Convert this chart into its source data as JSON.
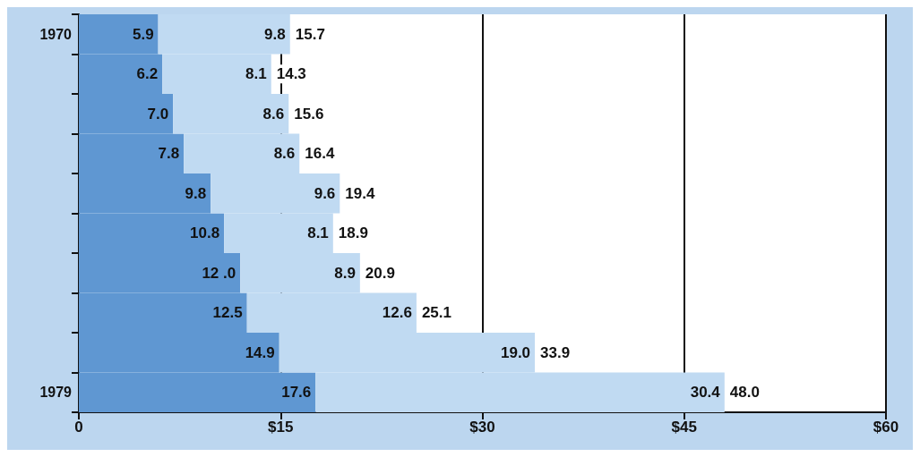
{
  "chart_data": {
    "type": "bar",
    "orientation": "horizontal",
    "stacked": true,
    "categories": [
      "1970",
      null,
      null,
      null,
      null,
      null,
      null,
      null,
      null,
      "1979"
    ],
    "series": [
      {
        "color": "#5f97d2",
        "values": [
          5.9,
          6.2,
          7.0,
          7.8,
          9.8,
          10.8,
          12.0,
          12.5,
          14.9,
          17.6
        ],
        "value_labels": [
          "5.9",
          "6.2",
          "7.0",
          "7.8",
          "9.8",
          "10.8",
          "12 .0",
          "12.5",
          "14.9",
          "17.6"
        ]
      },
      {
        "color": "#c0daf2",
        "values": [
          9.8,
          8.1,
          8.6,
          8.6,
          9.6,
          8.1,
          8.9,
          12.6,
          19.0,
          30.4
        ],
        "value_labels": [
          "9.8",
          "8.1",
          "8.6",
          "8.6",
          "9.6",
          "8.1",
          "8.9",
          "12.6",
          "19.0",
          "30.4"
        ]
      }
    ],
    "totals": [
      "15.7",
      "14.3",
      "15.6",
      "16.4",
      "19.4",
      "18.9",
      "20.9",
      "25.1",
      "33.9",
      "48.0"
    ],
    "xlim": [
      0,
      60
    ],
    "xticks": [
      0,
      {
        "value": 15,
        "label": "$15"
      },
      {
        "value": 30,
        "label": "$30"
      },
      {
        "value": 45,
        "label": "$45"
      },
      {
        "value": 60,
        "label": "$60"
      }
    ],
    "grid": "x"
  }
}
